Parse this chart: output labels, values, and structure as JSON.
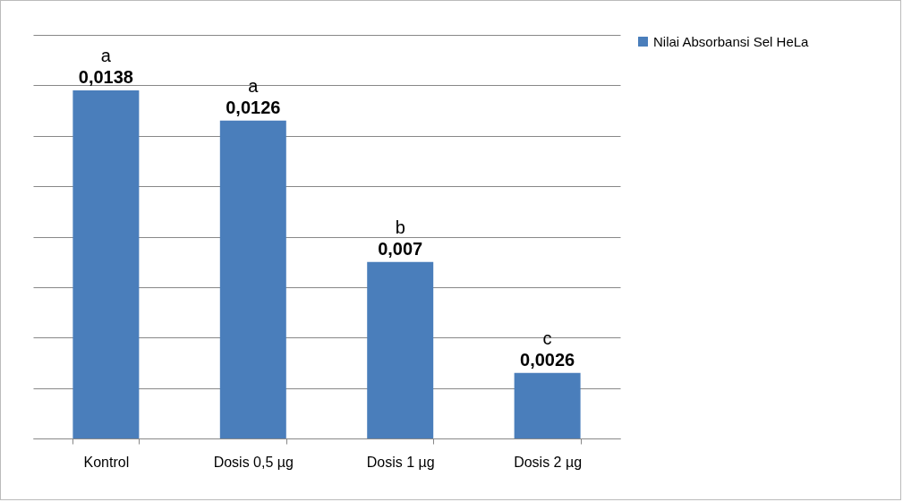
{
  "chart_data": {
    "type": "bar",
    "categories": [
      "Kontrol",
      "Dosis 0,5 µg",
      "Dosis 1 µg",
      "Dosis 2 µg"
    ],
    "series": [
      {
        "name": "Nilai Absorbansi Sel HeLa",
        "color": "#4a7ebb",
        "values": [
          0.0138,
          0.0126,
          0.007,
          0.0026
        ],
        "value_labels": [
          "0,0138",
          "0,0126",
          "0,007",
          "0,0026"
        ]
      }
    ],
    "ylim": [
      0,
      0.016
    ],
    "yticks": [
      {
        "value": 0,
        "label": null
      },
      {
        "value": 0.002,
        "label": null
      },
      {
        "value": 0.004,
        "label": null
      },
      {
        "value": 0.006,
        "label": null
      },
      {
        "value": 0.008,
        "label": null
      },
      {
        "value": 0.01,
        "label": null
      },
      {
        "value": 0.012,
        "label": null
      },
      {
        "value": 0.014,
        "label": null
      },
      {
        "value": 0.016,
        "label": null
      }
    ],
    "tick_labels": "x",
    "grid": "y",
    "legend": "right",
    "annotations": [
      {
        "text": "a",
        "x": "Kontrol",
        "y": 0.0138
      },
      {
        "text": "a",
        "x": "Dosis 0,5 µg",
        "y": 0.0126
      },
      {
        "text": "b",
        "x": "Dosis 1 µg",
        "y": 0.007
      },
      {
        "text": "c",
        "x": "Dosis 2 µg",
        "y": 0.0026
      }
    ]
  }
}
